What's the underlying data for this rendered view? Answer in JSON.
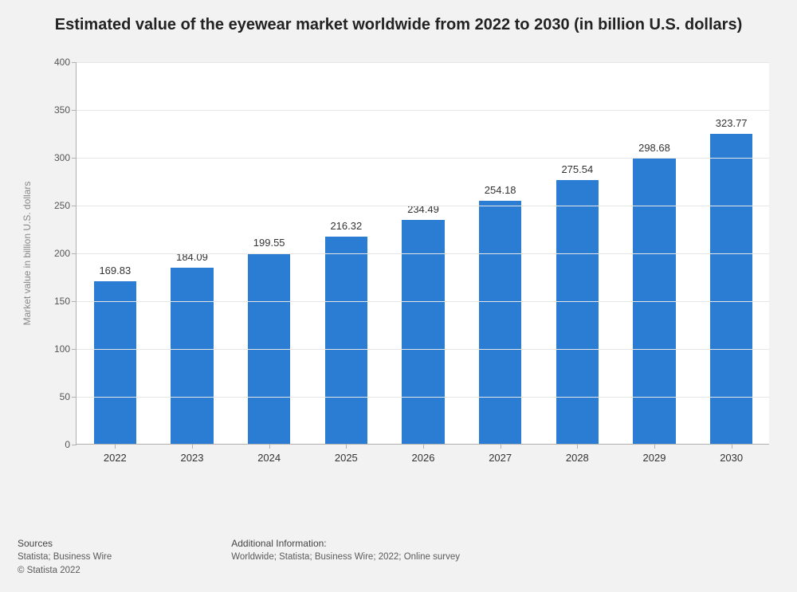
{
  "chart": {
    "type": "bar",
    "title": "Estimated value of the eyewear market worldwide from 2022 to 2030 (in billion U.S. dollars)",
    "y_axis_label": "Market value in billion U.S. dollars",
    "categories": [
      "2022",
      "2023",
      "2024",
      "2025",
      "2026",
      "2027",
      "2028",
      "2029",
      "2030"
    ],
    "values": [
      169.83,
      184.09,
      199.55,
      216.32,
      234.49,
      254.18,
      275.54,
      298.68,
      323.77
    ],
    "value_labels": [
      "169.83",
      "184.09",
      "199.55",
      "216.32",
      "234.49",
      "254.18",
      "275.54",
      "298.68",
      "323.77"
    ],
    "bar_color": "#2b7cd3",
    "plot_background": "#ffffff",
    "page_background": "#f2f2f2",
    "grid_color": "#e6e6e6",
    "axis_color": "#b0b0b0",
    "ylim": [
      0,
      400
    ],
    "ytick_step": 50,
    "yticks": [
      0,
      50,
      100,
      150,
      200,
      250,
      300,
      350,
      400
    ],
    "bar_width_ratio": 0.55,
    "label_fontsize": 12,
    "title_fontsize": 20,
    "value_fontsize": 13,
    "tick_fontsize": 13
  },
  "footer": {
    "sources_heading": "Sources",
    "sources_text": "Statista; Business Wire",
    "copyright": "© Statista 2022",
    "addl_heading": "Additional Information:",
    "addl_text": "Worldwide; Statista; Business Wire; 2022; Online survey"
  }
}
